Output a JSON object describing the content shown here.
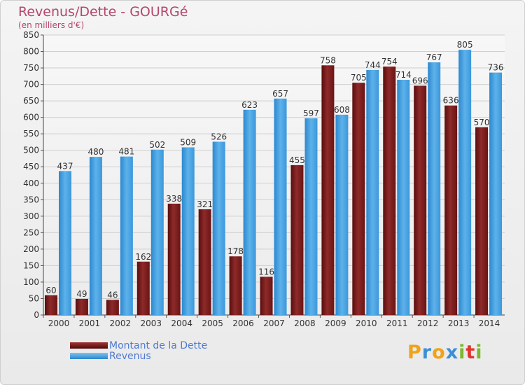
{
  "header": {
    "title": "Revenus/Dette - GOURGé",
    "subtitle": "(en milliers d'€)"
  },
  "chart_data": {
    "type": "bar",
    "categories": [
      "2000",
      "2001",
      "2002",
      "2003",
      "2004",
      "2005",
      "2006",
      "2007",
      "2008",
      "2009",
      "2010",
      "2011",
      "2012",
      "2013",
      "2014"
    ],
    "series": [
      {
        "name": "Montant de la Dette",
        "color": "#7a1b1b",
        "values": [
          60,
          49,
          46,
          162,
          338,
          321,
          178,
          116,
          455,
          758,
          705,
          754,
          696,
          636,
          570
        ]
      },
      {
        "name": "Revenus",
        "color": "#4aa3e4",
        "values": [
          437,
          480,
          481,
          502,
          509,
          526,
          623,
          657,
          597,
          608,
          744,
          714,
          767,
          805,
          736
        ]
      }
    ],
    "ylim": [
      0,
      850
    ],
    "ytick_step": 50,
    "grid": true,
    "legend_position": "bottom-left"
  },
  "legend": {
    "items": [
      {
        "label": "Montant de la Dette",
        "color": "#7a1b1b"
      },
      {
        "label": "Revenus",
        "color": "#4aa3e4"
      }
    ]
  },
  "logo": {
    "letters": [
      "P",
      "r",
      "o",
      "x",
      "i",
      "t",
      "i"
    ],
    "colors": [
      "#f0a21a",
      "#3c8fd6",
      "#f0a21a",
      "#3c8fd6",
      "#7cb82f",
      "#e0342d",
      "#7cb82f"
    ]
  }
}
